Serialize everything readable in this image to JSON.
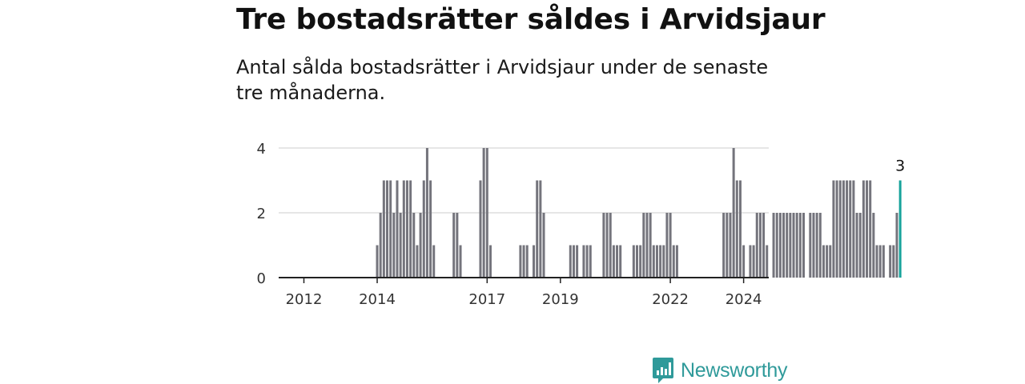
{
  "header": {
    "title": "Tre bostadsrätter såldes i Arvidsjaur",
    "subtitle": "Antal sålda bostadsrätter i Arvidsjaur under de senaste tre månaderna."
  },
  "brand": {
    "name": "Newsworthy",
    "color": "#2f9a9a"
  },
  "colors": {
    "bar": "#74747c",
    "highlight": "#17a39b",
    "grid": "#dddddd",
    "axis": "#222222"
  },
  "chart_data": {
    "type": "bar",
    "title": "Tre bostadsrätter såldes i Arvidsjaur",
    "xlabel": "",
    "ylabel": "",
    "ylim": [
      0,
      4
    ],
    "yticks": [
      "0",
      "2",
      "4"
    ],
    "xticks": [
      {
        "label": "2012",
        "index": 0
      },
      {
        "label": "2014",
        "index": 22
      },
      {
        "label": "2017",
        "index": 55
      },
      {
        "label": "2019",
        "index": 77
      },
      {
        "label": "2022",
        "index": 110
      },
      {
        "label": "2024",
        "index": 132
      }
    ],
    "frequency": "monthly",
    "start": "2012-01",
    "highlight_label": "3",
    "values": [
      0,
      0,
      0,
      0,
      0,
      0,
      0,
      0,
      0,
      0,
      0,
      0,
      0,
      0,
      0,
      0,
      0,
      0,
      0,
      0,
      0,
      0,
      1,
      2,
      3,
      3,
      3,
      2,
      3,
      2,
      3,
      3,
      3,
      2,
      1,
      2,
      3,
      4,
      3,
      1,
      0,
      0,
      0,
      0,
      0,
      2,
      2,
      1,
      0,
      0,
      0,
      0,
      0,
      3,
      4,
      4,
      1,
      0,
      0,
      0,
      0,
      0,
      0,
      0,
      0,
      1,
      1,
      1,
      0,
      1,
      3,
      3,
      2,
      0,
      0,
      0,
      0,
      0,
      0,
      0,
      1,
      1,
      1,
      0,
      1,
      1,
      1,
      0,
      0,
      0,
      2,
      2,
      2,
      1,
      1,
      1,
      0,
      0,
      0,
      1,
      1,
      1,
      2,
      2,
      2,
      1,
      1,
      1,
      1,
      2,
      2,
      1,
      1,
      0,
      0,
      0,
      0,
      0,
      0,
      0,
      0,
      0,
      0,
      0,
      0,
      0,
      2,
      2,
      2,
      4,
      3,
      3,
      1,
      0,
      1,
      1,
      2,
      2,
      2,
      1,
      0,
      2,
      2,
      2,
      2,
      2,
      2,
      2,
      2,
      2,
      2,
      0,
      2,
      2,
      2,
      2,
      1,
      1,
      1,
      3,
      3,
      3,
      3,
      3,
      3,
      3,
      2,
      2,
      3,
      3,
      3,
      2,
      1,
      1,
      1,
      0,
      1,
      1,
      2,
      3
    ]
  }
}
